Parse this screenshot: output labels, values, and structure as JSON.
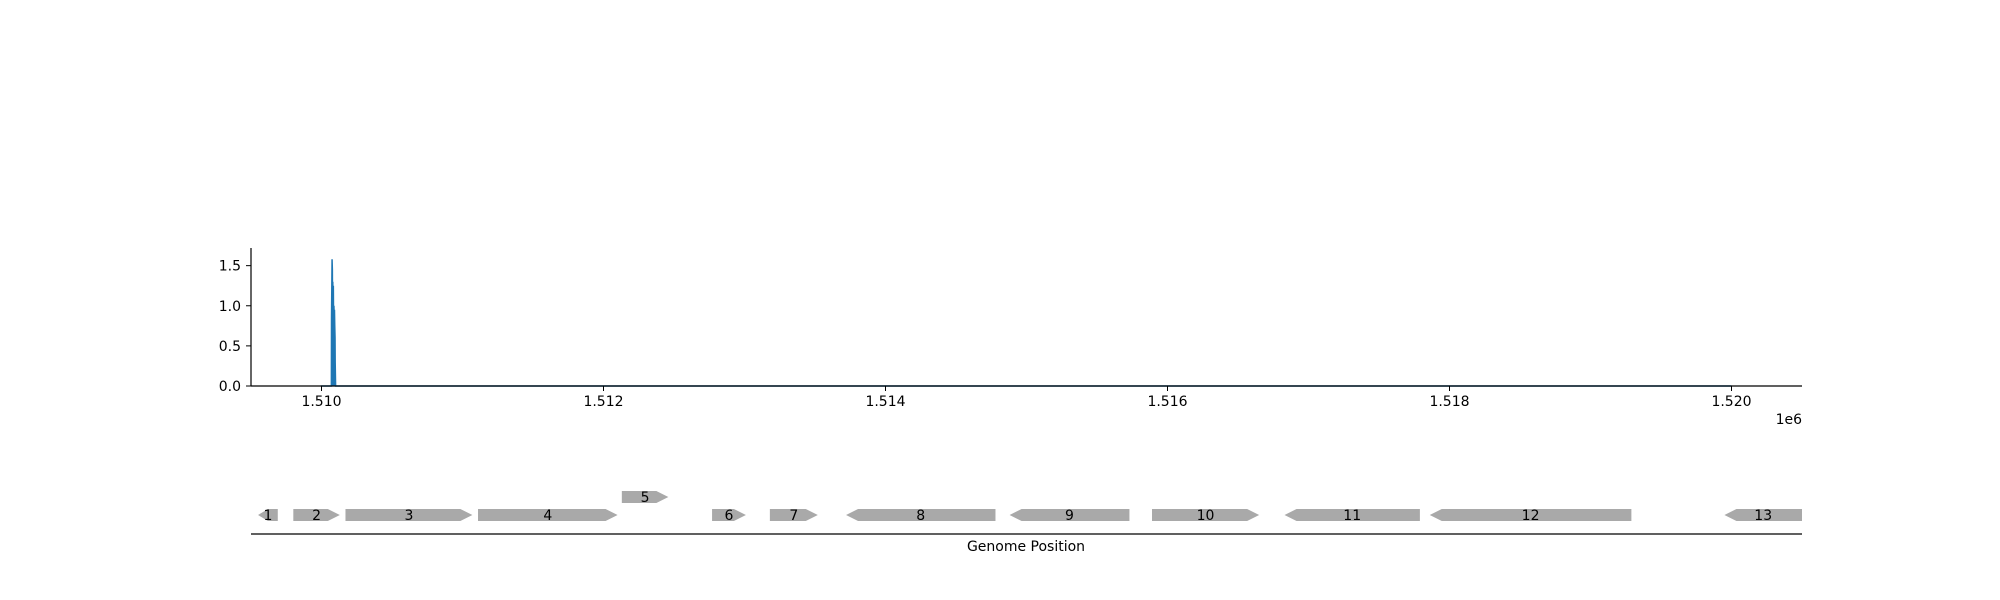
{
  "chart_data": [
    {
      "type": "area",
      "title": "",
      "xlabel": "",
      "ylabel": "",
      "x_offset_text": "1e6",
      "xlim": [
        1509500,
        1520500
      ],
      "ylim": [
        0.0,
        1.72
      ],
      "x_ticks": [
        1510000,
        1512000,
        1514000,
        1516000,
        1518000,
        1520000
      ],
      "x_tick_labels": [
        "1.510",
        "1.512",
        "1.514",
        "1.516",
        "1.518",
        "1.520"
      ],
      "y_ticks": [
        0.0,
        0.5,
        1.0,
        1.5
      ],
      "y_tick_labels": [
        "0.0",
        "0.5",
        "1.0",
        "1.5"
      ],
      "grid": false,
      "series": [
        {
          "color": "#1f77b4",
          "x": [
            1509995,
            1510070,
            1510071,
            1510073,
            1510075,
            1510077,
            1510078,
            1510080,
            1510082,
            1510084,
            1510086,
            1510088,
            1510090,
            1510092,
            1510094,
            1510096,
            1510097,
            1510100,
            1520000
          ],
          "y": [
            0.0,
            0.0,
            0.85,
            1.2,
            1.58,
            1.45,
            1.1,
            1.3,
            0.9,
            1.25,
            0.7,
            1.0,
            0.85,
            0.95,
            0.75,
            0.6,
            0.3,
            0.0,
            0.0
          ]
        }
      ]
    },
    {
      "type": "gene_track",
      "xlabel": "Genome Position",
      "genes": [
        {
          "label": "1",
          "start": 1509550,
          "end": 1509690,
          "strand": "-",
          "row": 0
        },
        {
          "label": "2",
          "start": 1509800,
          "end": 1510130,
          "strand": "+",
          "row": 0
        },
        {
          "label": "3",
          "start": 1510170,
          "end": 1511070,
          "strand": "+",
          "row": 0
        },
        {
          "label": "4",
          "start": 1511110,
          "end": 1512100,
          "strand": "+",
          "row": 0
        },
        {
          "label": "5",
          "start": 1512130,
          "end": 1512460,
          "strand": "+",
          "row": 1
        },
        {
          "label": "6",
          "start": 1512770,
          "end": 1513010,
          "strand": "+",
          "row": 0
        },
        {
          "label": "7",
          "start": 1513180,
          "end": 1513520,
          "strand": "+",
          "row": 0
        },
        {
          "label": "8",
          "start": 1513720,
          "end": 1514780,
          "strand": "-",
          "row": 0
        },
        {
          "label": "9",
          "start": 1514880,
          "end": 1515730,
          "strand": "-",
          "row": 0
        },
        {
          "label": "10",
          "start": 1515890,
          "end": 1516650,
          "strand": "+",
          "row": 0
        },
        {
          "label": "11",
          "start": 1516830,
          "end": 1517790,
          "strand": "-",
          "row": 0
        },
        {
          "label": "12",
          "start": 1517860,
          "end": 1519290,
          "strand": "-",
          "row": 0
        },
        {
          "label": "13",
          "start": 1519950,
          "end": 1520500,
          "strand": "-",
          "row": 0
        }
      ],
      "colors": {
        "gene_fill": "#a9a9a9",
        "axis": "#000000"
      }
    }
  ]
}
